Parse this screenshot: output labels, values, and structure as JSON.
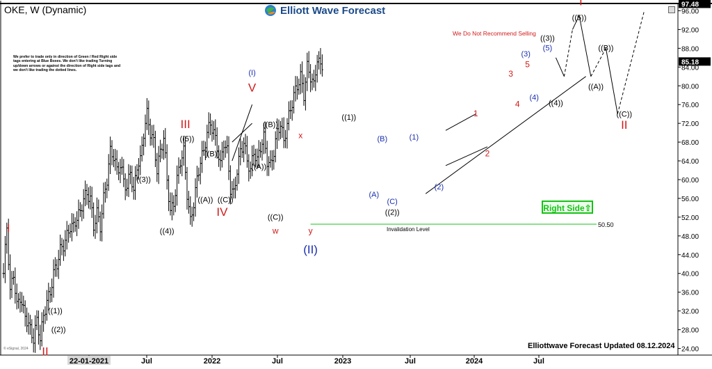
{
  "header": {
    "title": "OKE, W (Dynamic)"
  },
  "logo": {
    "text": "Elliott Wave Forecast",
    "icon": "globe-logo-icon"
  },
  "notice": "We prefer to trade only in direction of Green / Red Right side tags entering at Blue Boxes. We don't like trading Turning up/down arrows or against the direction of Right side tags and we don't like trading the dotted lines.",
  "recommend_note": "We Do Not Recommend Selling",
  "right_side_badge": "Right Side⇧",
  "invalidation": {
    "label": "Invalidation Level",
    "value": "50.50",
    "price": 50.5
  },
  "updated_label": "Elliottwave Forecast Updated 08.12.2024",
  "copyright": "© eSignal, 2024",
  "colors": {
    "bar": "#000000",
    "red_label": "#d21a1a",
    "blue_label": "#1a2fb0",
    "green": "#17c117",
    "price_box": "#000000"
  },
  "chart_data": {
    "type": "bar",
    "series_type": "weekly OHLC price bars",
    "ylim": [
      22,
      98
    ],
    "y_ticks": [
      "24.00",
      "28.00",
      "32.00",
      "36.00",
      "40.00",
      "44.00",
      "48.00",
      "52.00",
      "56.00",
      "60.00",
      "64.00",
      "68.00",
      "72.00",
      "76.00",
      "80.00",
      "84.00",
      "88.00",
      "92.00",
      "96.00"
    ],
    "x_ticks": [
      "22-01-2021",
      "Jul",
      "2022",
      "Jul",
      "2023",
      "Jul",
      "2024",
      "Jul"
    ],
    "price_labels": [
      {
        "text": "97.48",
        "price": 97.48
      },
      {
        "text": "85.18",
        "price": 85.18
      }
    ],
    "price_path": [
      [
        0,
        40
      ],
      [
        2,
        50
      ],
      [
        4,
        36
      ],
      [
        6,
        40
      ],
      [
        8,
        33
      ],
      [
        10,
        35
      ],
      [
        12,
        32
      ],
      [
        14,
        30
      ],
      [
        16,
        28
      ],
      [
        18,
        26
      ],
      [
        20,
        30
      ],
      [
        22,
        26
      ],
      [
        24,
        31
      ],
      [
        26,
        34
      ],
      [
        28,
        36
      ],
      [
        30,
        40
      ],
      [
        32,
        42
      ],
      [
        34,
        45
      ],
      [
        36,
        46
      ],
      [
        38,
        48
      ],
      [
        40,
        50
      ],
      [
        42,
        50
      ],
      [
        44,
        52
      ],
      [
        46,
        53
      ],
      [
        48,
        56
      ],
      [
        50,
        57
      ],
      [
        52,
        56
      ],
      [
        54,
        50
      ],
      [
        56,
        53
      ],
      [
        58,
        50
      ],
      [
        60,
        56
      ],
      [
        62,
        60
      ],
      [
        64,
        66
      ],
      [
        66,
        65
      ],
      [
        68,
        62
      ],
      [
        70,
        63
      ],
      [
        72,
        60
      ],
      [
        74,
        58
      ],
      [
        76,
        62
      ],
      [
        78,
        57
      ],
      [
        80,
        63
      ],
      [
        82,
        64
      ],
      [
        84,
        70
      ],
      [
        86,
        74
      ],
      [
        88,
        70
      ],
      [
        90,
        68
      ],
      [
        92,
        62
      ],
      [
        94,
        66
      ],
      [
        96,
        69
      ],
      [
        98,
        60
      ],
      [
        100,
        53
      ],
      [
        102,
        55
      ],
      [
        104,
        60
      ],
      [
        106,
        64
      ],
      [
        108,
        66
      ],
      [
        110,
        57
      ],
      [
        112,
        51
      ],
      [
        114,
        55
      ],
      [
        116,
        60
      ],
      [
        118,
        64
      ],
      [
        120,
        66
      ],
      [
        122,
        70
      ],
      [
        124,
        72
      ],
      [
        126,
        70
      ],
      [
        128,
        67
      ],
      [
        130,
        63
      ],
      [
        132,
        68
      ],
      [
        134,
        66
      ],
      [
        136,
        58
      ],
      [
        138,
        57
      ],
      [
        140,
        62
      ],
      [
        142,
        66
      ],
      [
        144,
        68
      ],
      [
        146,
        64
      ],
      [
        148,
        62
      ],
      [
        150,
        66
      ],
      [
        152,
        64
      ],
      [
        154,
        67
      ],
      [
        156,
        69
      ],
      [
        158,
        64
      ],
      [
        160,
        63
      ],
      [
        162,
        66
      ],
      [
        164,
        70
      ],
      [
        166,
        72
      ],
      [
        168,
        68
      ],
      [
        170,
        72
      ],
      [
        172,
        75
      ],
      [
        174,
        78
      ],
      [
        176,
        80
      ],
      [
        178,
        82
      ],
      [
        180,
        78
      ],
      [
        182,
        84
      ],
      [
        184,
        82
      ],
      [
        186,
        80
      ],
      [
        188,
        86
      ],
      [
        190,
        84
      ],
      [
        192,
        85
      ]
    ],
    "wave_labels": [
      {
        "text": "I",
        "color": "red",
        "x": 3,
        "price": 48.8
      },
      {
        "text": "II",
        "color": "red",
        "x": 25,
        "price": 22.5
      },
      {
        "text": "((1))",
        "color": "black",
        "x": 31,
        "price": 31.5
      },
      {
        "text": "((2))",
        "color": "black",
        "x": 33,
        "price": 27.5
      },
      {
        "text": "((3))",
        "color": "black",
        "x": 84,
        "price": 59.5
      },
      {
        "text": "((4))",
        "color": "black",
        "x": 98,
        "price": 48.5
      },
      {
        "text": "III",
        "color": "red",
        "x": 109,
        "price": 71.0
      },
      {
        "text": "((5))",
        "color": "black",
        "x": 110,
        "price": 68.2
      },
      {
        "text": "((B))",
        "color": "black",
        "x": 125,
        "price": 65.0
      },
      {
        "text": "((A))",
        "color": "black",
        "x": 121,
        "price": 55.2
      },
      {
        "text": "((C))",
        "color": "black",
        "x": 133,
        "price": 55.2
      },
      {
        "text": "IV",
        "color": "red",
        "x": 131,
        "price": 52.3
      },
      {
        "text": "(I)",
        "color": "blue",
        "x": 149,
        "price": 82.3
      },
      {
        "text": "V",
        "color": "red",
        "x": 149,
        "price": 78.8
      },
      {
        "text": "((B))",
        "color": "black",
        "x": 160,
        "price": 71.2
      },
      {
        "text": "((A))",
        "color": "black",
        "x": 153,
        "price": 62.2
      },
      {
        "text": "((C))",
        "color": "black",
        "x": 163,
        "price": 51.5
      },
      {
        "text": "w",
        "color": "red",
        "x": 163,
        "price": 48.5
      },
      {
        "text": "x",
        "color": "red",
        "x": 178,
        "price": 68.8
      },
      {
        "text": "y",
        "color": "red",
        "x": 184,
        "price": 48.5
      },
      {
        "text": "(II)",
        "color": "blue",
        "x": 184,
        "price": 44.3
      },
      {
        "text": "((1))",
        "color": "black",
        "x": 207,
        "price": 72.8
      },
      {
        "text": "(B)",
        "color": "blue",
        "x": 227,
        "price": 68.2
      },
      {
        "text": "(A)",
        "color": "blue",
        "x": 222,
        "price": 56.3
      },
      {
        "text": "(C)",
        "color": "blue",
        "x": 233,
        "price": 54.8
      },
      {
        "text": "((2))",
        "color": "black",
        "x": 233,
        "price": 52.5
      },
      {
        "text": "(1)",
        "color": "blue",
        "x": 246,
        "price": 68.5
      },
      {
        "text": "(2)",
        "color": "blue",
        "x": 261,
        "price": 57.9
      },
      {
        "text": "1",
        "color": "red",
        "x": 283,
        "price": 73.5
      },
      {
        "text": "2",
        "color": "red",
        "x": 290,
        "price": 65.0
      },
      {
        "text": "3",
        "color": "red",
        "x": 304,
        "price": 82.0
      },
      {
        "text": "4",
        "color": "red",
        "x": 308,
        "price": 75.5
      },
      {
        "text": "(3)",
        "color": "blue",
        "x": 313,
        "price": 86.3
      },
      {
        "text": "5",
        "color": "red",
        "x": 314,
        "price": 84.0
      },
      {
        "text": "(4)",
        "color": "blue",
        "x": 318,
        "price": 77.0
      },
      {
        "text": "((3))",
        "color": "black",
        "x": 326,
        "price": 89.6
      },
      {
        "text": "(5)",
        "color": "blue",
        "x": 326,
        "price": 87.5
      },
      {
        "text": "((4))",
        "color": "black",
        "x": 331,
        "price": 75.8
      },
      {
        "text": "I",
        "color": "red",
        "x": 346,
        "price": 97.2
      },
      {
        "text": "((5))",
        "color": "black",
        "x": 345,
        "price": 94.0
      },
      {
        "text": "((B))",
        "color": "black",
        "x": 361,
        "price": 87.5
      },
      {
        "text": "((A))",
        "color": "black",
        "x": 355,
        "price": 79.3
      },
      {
        "text": "((C))",
        "color": "black",
        "x": 372,
        "price": 73.4
      },
      {
        "text": "II",
        "color": "red",
        "x": 372,
        "price": 70.8
      }
    ]
  }
}
